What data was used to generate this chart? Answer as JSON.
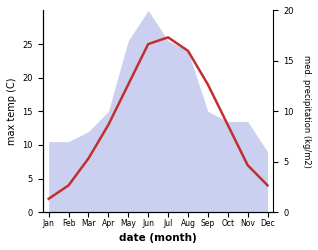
{
  "months": [
    "Jan",
    "Feb",
    "Mar",
    "Apr",
    "May",
    "Jun",
    "Jul",
    "Aug",
    "Sep",
    "Oct",
    "Nov",
    "Dec"
  ],
  "max_temp": [
    2,
    4,
    8,
    13,
    19,
    25,
    26,
    24,
    19,
    13,
    7,
    4
  ],
  "precipitation": [
    7,
    7,
    8,
    10,
    17,
    20,
    17,
    16,
    10,
    9,
    9,
    6
  ],
  "temp_ylim": [
    0,
    30
  ],
  "precip_ylim": [
    0,
    20
  ],
  "temp_color": "#c03030",
  "precip_fill_color": "#b0b8e8",
  "precip_fill_alpha": 0.65,
  "xlabel": "date (month)",
  "ylabel_left": "max temp (C)",
  "ylabel_right": "med. precipitation (kg/m2)",
  "fig_width": 3.18,
  "fig_height": 2.5,
  "dpi": 100
}
